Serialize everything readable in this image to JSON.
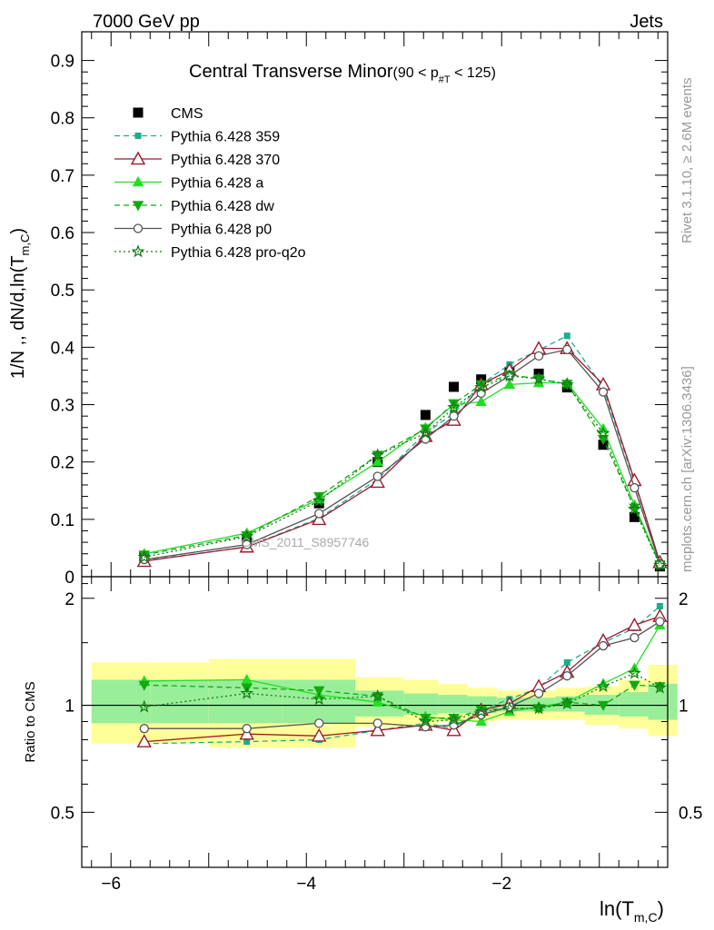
{
  "header": {
    "left": "7000 GeV pp",
    "right": "Jets",
    "side_top": "Rivet 3.1.10, ≥ 2.6M events",
    "side_bottom": "mcplots.cern.ch [arXiv:1306.3436]",
    "watermark": "CMS_2011_S8957746"
  },
  "colors": {
    "cms": "#000000",
    "p359": "#1aae8c",
    "p370": "#9b1b30",
    "pa": "#22dd22",
    "pdw": "#11aa11",
    "pp0": "#555555",
    "pq2o": "#127a12",
    "band_outer": "#ffff99",
    "band_inner": "#99ee99"
  },
  "chart_data": [
    {
      "type": "line",
      "panel": "main",
      "title": "Central Transverse Minor",
      "title_suffix": "(90 < p",
      "title_sub": "#T",
      "title_end": " < 125)",
      "ylabel": "1/N ,, dN/d,ln(T",
      "ylabel_sub": "m,C",
      "ylabel_end": ")",
      "ylim": [
        0,
        0.95
      ],
      "xlim": [
        -6.3,
        -0.3
      ],
      "yticks": [
        0,
        0.1,
        0.2,
        0.3,
        0.4,
        0.5,
        0.6,
        0.7,
        0.8,
        0.9
      ],
      "ytick_labels": [
        "0",
        "0.1",
        "0.2",
        "0.3",
        "0.4",
        "0.5",
        "0.6",
        "0.7",
        "0.8",
        "0.9"
      ],
      "legend_position": "top-left",
      "x": [
        -5.66,
        -4.61,
        -3.87,
        -3.27,
        -2.78,
        -2.49,
        -2.21,
        -1.92,
        -1.62,
        -1.33,
        -0.96,
        -0.64,
        -0.38
      ],
      "series": [
        {
          "name": "CMS",
          "key": "cms",
          "values": [
            0.035,
            0.065,
            0.128,
            0.2,
            0.282,
            0.331,
            0.344,
            0.357,
            0.354,
            0.33,
            0.23,
            0.104,
            0.018
          ]
        },
        {
          "name": "Pythia 6.428 359",
          "key": "p359",
          "values": [
            0.028,
            0.052,
            0.102,
            0.17,
            0.25,
            0.285,
            0.335,
            0.37,
            0.395,
            0.42,
            0.33,
            0.165,
            0.025
          ]
        },
        {
          "name": "Pythia 6.428 370",
          "key": "p370",
          "values": [
            0.027,
            0.052,
            0.1,
            0.165,
            0.245,
            0.273,
            0.335,
            0.36,
            0.398,
            0.398,
            0.335,
            0.168,
            0.025
          ]
        },
        {
          "name": "Pythia 6.428 a",
          "key": "pa",
          "values": [
            0.04,
            0.076,
            0.135,
            0.2,
            0.26,
            0.3,
            0.305,
            0.335,
            0.338,
            0.338,
            0.258,
            0.125,
            0.022
          ]
        },
        {
          "name": "Pythia 6.428 dw",
          "key": "pdw",
          "values": [
            0.038,
            0.072,
            0.14,
            0.212,
            0.258,
            0.302,
            0.335,
            0.352,
            0.345,
            0.336,
            0.24,
            0.12,
            0.021
          ]
        },
        {
          "name": "Pythia 6.428 p0",
          "key": "pp0",
          "values": [
            0.03,
            0.056,
            0.11,
            0.175,
            0.24,
            0.28,
            0.32,
            0.35,
            0.385,
            0.396,
            0.322,
            0.155,
            0.022
          ]
        },
        {
          "name": "Pythia 6.428 pro-q2o",
          "key": "pq2o",
          "values": [
            0.034,
            0.07,
            0.132,
            0.212,
            0.25,
            0.295,
            0.33,
            0.35,
            0.345,
            0.335,
            0.25,
            0.118,
            0.02
          ]
        }
      ]
    },
    {
      "type": "line",
      "panel": "ratio",
      "ylabel": "Ratio to CMS",
      "xlabel": "ln(T",
      "xlabel_sub": "m,C",
      "xlabel_end": ")",
      "ylim": [
        0.35,
        2.3
      ],
      "xlim": [
        -6.3,
        -0.3
      ],
      "yticks": [
        0.5,
        1,
        2
      ],
      "ytick_labels": [
        "0.5",
        "1",
        "2"
      ],
      "xticks": [
        -6,
        -4,
        -2
      ],
      "xtick_labels": [
        "−6",
        "−4",
        "−2"
      ],
      "reference_line": 1,
      "bands": {
        "edges": [
          -6.2,
          -5.6,
          -5.0,
          -4.25,
          -3.5,
          -3.0,
          -2.65,
          -2.35,
          -2.05,
          -1.75,
          -1.45,
          -1.15,
          -0.8,
          -0.5,
          -0.2
        ],
        "outer_low": [
          0.78,
          0.78,
          0.76,
          0.76,
          0.87,
          0.88,
          0.9,
          0.9,
          0.91,
          0.91,
          0.91,
          0.88,
          0.86,
          0.82
        ],
        "outer_high": [
          1.32,
          1.32,
          1.35,
          1.35,
          1.2,
          1.18,
          1.15,
          1.12,
          1.1,
          1.1,
          1.12,
          1.13,
          1.18,
          1.3
        ],
        "inner_low": [
          0.89,
          0.89,
          0.89,
          0.89,
          0.93,
          0.94,
          0.95,
          0.95,
          0.96,
          0.96,
          0.96,
          0.94,
          0.93,
          0.91
        ],
        "inner_high": [
          1.18,
          1.18,
          1.18,
          1.18,
          1.1,
          1.08,
          1.07,
          1.06,
          1.05,
          1.05,
          1.06,
          1.07,
          1.09,
          1.15
        ]
      },
      "x": [
        -5.66,
        -4.61,
        -3.87,
        -3.27,
        -2.78,
        -2.49,
        -2.21,
        -1.92,
        -1.62,
        -1.33,
        -0.96,
        -0.64,
        -0.38
      ],
      "series": [
        {
          "name": "Pythia 6.428 359",
          "key": "p359",
          "values": [
            0.78,
            0.79,
            0.8,
            0.85,
            0.89,
            0.86,
            0.97,
            1.04,
            1.12,
            1.32,
            1.5,
            1.65,
            1.9
          ]
        },
        {
          "name": "Pythia 6.428 370",
          "key": "p370",
          "values": [
            0.79,
            0.83,
            0.82,
            0.85,
            0.88,
            0.85,
            0.97,
            1.01,
            1.13,
            1.24,
            1.52,
            1.68,
            1.78
          ]
        },
        {
          "name": "Pythia 6.428 a",
          "key": "pa",
          "values": [
            1.17,
            1.18,
            1.07,
            1.02,
            0.93,
            0.91,
            0.9,
            0.96,
            0.99,
            1.02,
            1.15,
            1.27,
            1.68
          ]
        },
        {
          "name": "Pythia 6.428 dw",
          "key": "pdw",
          "values": [
            1.14,
            1.12,
            1.1,
            1.06,
            0.92,
            0.92,
            0.97,
            0.98,
            0.98,
            1.02,
            1.0,
            1.14,
            1.13
          ]
        },
        {
          "name": "Pythia 6.428 p0",
          "key": "pp0",
          "values": [
            0.86,
            0.86,
            0.89,
            0.89,
            0.87,
            0.88,
            0.94,
            0.99,
            1.08,
            1.21,
            1.47,
            1.55,
            1.72
          ]
        },
        {
          "name": "Pythia 6.428 pro-q2o",
          "key": "pq2o",
          "values": [
            0.99,
            1.08,
            1.04,
            1.06,
            0.9,
            0.91,
            0.96,
            0.98,
            0.98,
            1.01,
            1.13,
            1.23,
            1.12
          ]
        }
      ]
    }
  ]
}
